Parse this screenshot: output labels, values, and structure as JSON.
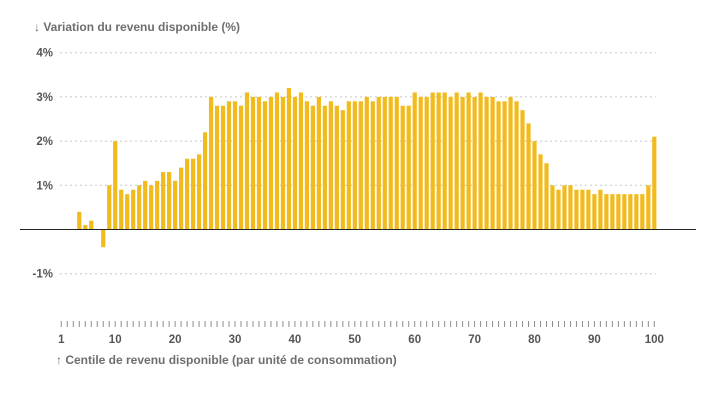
{
  "chart_data": {
    "type": "bar",
    "ylabel": "↓ Variation du revenu disponible (%)",
    "xlabel": "↑ Centile de revenu disponible (par unité de consommation)",
    "ylim": [
      -2,
      4
    ],
    "y_ticks": [
      4,
      3,
      2,
      1,
      -1
    ],
    "y_tick_labels": [
      "4%",
      "3%",
      "2%",
      "1%",
      "-1%"
    ],
    "x_ticks": [
      1,
      10,
      20,
      30,
      40,
      50,
      60,
      70,
      80,
      90,
      100
    ],
    "x_tick_labels": [
      "1",
      "10",
      "20",
      "30",
      "40",
      "50",
      "60",
      "70",
      "80",
      "90",
      "100"
    ],
    "grid": "horizontal dotted",
    "bar_color": "#f2bb1d",
    "categories": [
      1,
      2,
      3,
      4,
      5,
      6,
      7,
      8,
      9,
      10,
      11,
      12,
      13,
      14,
      15,
      16,
      17,
      18,
      19,
      20,
      21,
      22,
      23,
      24,
      25,
      26,
      27,
      28,
      29,
      30,
      31,
      32,
      33,
      34,
      35,
      36,
      37,
      38,
      39,
      40,
      41,
      42,
      43,
      44,
      45,
      46,
      47,
      48,
      49,
      50,
      51,
      52,
      53,
      54,
      55,
      56,
      57,
      58,
      59,
      60,
      61,
      62,
      63,
      64,
      65,
      66,
      67,
      68,
      69,
      70,
      71,
      72,
      73,
      74,
      75,
      76,
      77,
      78,
      79,
      80,
      81,
      82,
      83,
      84,
      85,
      86,
      87,
      88,
      89,
      90,
      91,
      92,
      93,
      94,
      95,
      96,
      97,
      98,
      99,
      100
    ],
    "values": [
      0,
      0,
      0,
      0.4,
      0.1,
      0.2,
      0,
      -0.4,
      1.0,
      2.0,
      0.9,
      0.8,
      0.9,
      1.0,
      1.1,
      1.0,
      1.1,
      1.3,
      1.3,
      1.1,
      1.4,
      1.6,
      1.6,
      1.7,
      2.2,
      3.0,
      2.8,
      2.8,
      2.9,
      2.9,
      2.8,
      3.1,
      3.0,
      3.0,
      2.9,
      3.0,
      3.1,
      3.0,
      3.2,
      3.0,
      3.1,
      2.9,
      2.8,
      3.0,
      2.8,
      2.9,
      2.8,
      2.7,
      2.9,
      2.9,
      2.9,
      3.0,
      2.9,
      3.0,
      3.0,
      3.0,
      3.0,
      2.8,
      2.8,
      3.1,
      3.0,
      3.0,
      3.1,
      3.1,
      3.1,
      3.0,
      3.1,
      3.0,
      3.1,
      3.0,
      3.1,
      3.0,
      3.0,
      2.9,
      2.9,
      3.0,
      2.9,
      2.7,
      2.4,
      2.0,
      1.7,
      1.5,
      1.0,
      0.9,
      1.0,
      1.0,
      0.9,
      0.9,
      0.9,
      0.8,
      0.9,
      0.8,
      0.8,
      0.8,
      0.8,
      0.8,
      0.8,
      0.8,
      1.0,
      2.1
    ]
  }
}
